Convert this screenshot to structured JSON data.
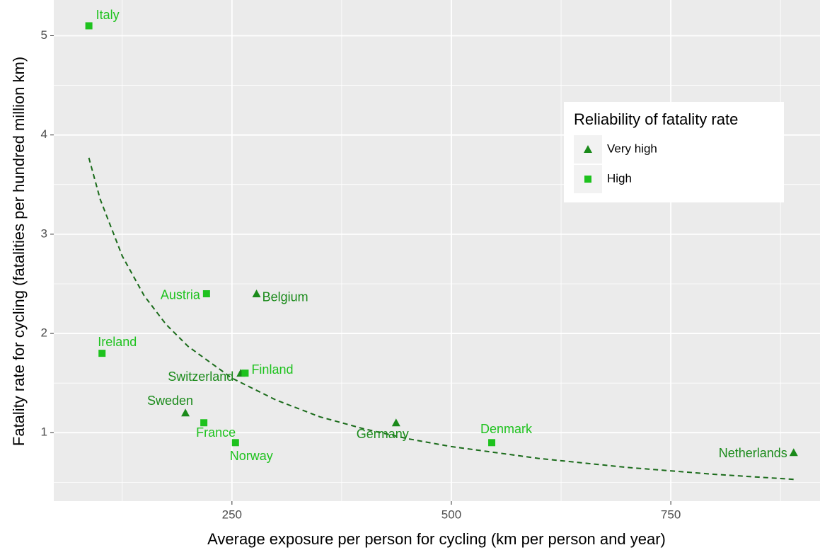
{
  "chart_data": {
    "type": "scatter",
    "x_label": "Average exposure per person for cycling (km per person and year)",
    "y_label": "Fatality rate for cycling (fatalities per hundred million km)",
    "xlim": [
      47,
      920
    ],
    "ylim": [
      0.31,
      5.36
    ],
    "xticks": [
      250,
      500,
      750
    ],
    "yticks": [
      1,
      2,
      3,
      4,
      5
    ],
    "xminor": [
      125,
      375,
      625,
      875
    ],
    "yminor": [
      0.5,
      1.5,
      2.5,
      3.5,
      4.5
    ],
    "grid": true,
    "legend_title": "Reliability of fatality rate",
    "legend_position": "top-right",
    "series": [
      {
        "name": "Very high",
        "color": "#1A8A1A",
        "shape": "triangle",
        "x": [
          278,
          260,
          197,
          437,
          890
        ],
        "values": [
          2.4,
          1.6,
          1.2,
          1.1,
          0.8
        ],
        "labels": [
          "Belgium",
          "Switzerland",
          "Sweden",
          "Germany",
          "Netherlands"
        ]
      },
      {
        "name": "High",
        "color": "#1EC21E",
        "shape": "square",
        "x": [
          87,
          102,
          221,
          265,
          218,
          254,
          546
        ],
        "values": [
          5.1,
          1.8,
          2.4,
          1.6,
          1.1,
          0.9,
          0.9
        ],
        "labels": [
          "Italy",
          "Ireland",
          "Austria",
          "Finland",
          "France",
          "Norway",
          "Denmark"
        ]
      }
    ],
    "trend": {
      "color": "#1A6B1A",
      "dashed": true,
      "x": [
        87,
        100,
        125,
        150,
        175,
        200,
        250,
        300,
        350,
        400,
        450,
        500,
        600,
        700,
        800,
        890
      ],
      "values": [
        3.77,
        3.35,
        2.78,
        2.38,
        2.09,
        1.87,
        1.55,
        1.33,
        1.16,
        1.04,
        0.94,
        0.86,
        0.74,
        0.65,
        0.58,
        0.53
      ]
    }
  }
}
